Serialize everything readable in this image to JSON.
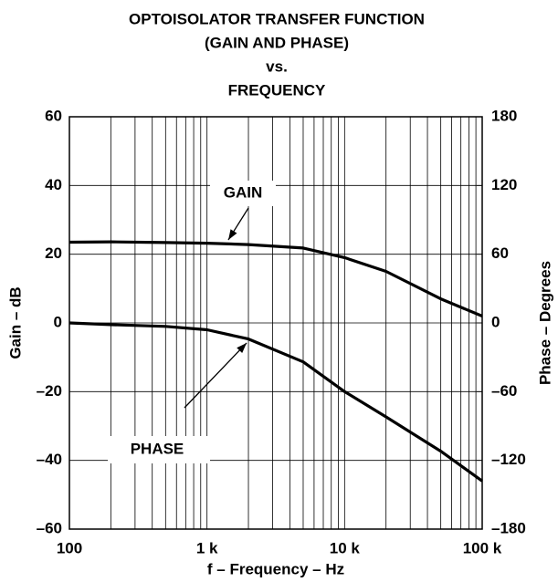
{
  "chart_data": {
    "type": "line",
    "title": [
      "OPTOISOLATOR TRANSFER FUNCTION",
      "(GAIN AND PHASE)",
      "vs.",
      "FREQUENCY"
    ],
    "x_label": "f – Frequency – Hz",
    "y_label": "Gain – dB",
    "y2_label": "Phase – Degrees",
    "x_scale": "log",
    "grid": true,
    "minor_grid": true,
    "x": [
      100,
      200,
      500,
      1000,
      2000,
      5000,
      10000,
      20000,
      50000,
      100000
    ],
    "series": [
      {
        "name": "GAIN",
        "color": "#000000",
        "axis": "y",
        "values": [
          23.5,
          23.6,
          23.4,
          23.2,
          22.8,
          21.8,
          19,
          15,
          7,
          2
        ]
      },
      {
        "name": "PHASE",
        "color": "#000000",
        "axis": "y2",
        "values": [
          0,
          -1.5,
          -3,
          -6,
          -14,
          -34,
          -60,
          -82,
          -112,
          -138
        ]
      }
    ],
    "xlim": [
      100,
      100000
    ],
    "xticks": [
      100,
      {
        "value": 1000,
        "label": "1 k"
      },
      {
        "value": 10000,
        "label": "10 k"
      },
      {
        "value": 100000,
        "label": "100 k"
      }
    ],
    "ylim": [
      -60,
      60
    ],
    "yticks": [
      {
        "value": -60,
        "label": "–60"
      },
      {
        "value": -40,
        "label": "–40"
      },
      {
        "value": -20,
        "label": "–20"
      },
      0,
      20,
      40,
      60
    ],
    "y2lim": [
      -180,
      180
    ],
    "y2ticks": [
      {
        "value": -180,
        "label": "–180"
      },
      {
        "value": -120,
        "label": "–120"
      },
      {
        "value": -60,
        "label": "–60"
      },
      0,
      60,
      120,
      180
    ]
  }
}
